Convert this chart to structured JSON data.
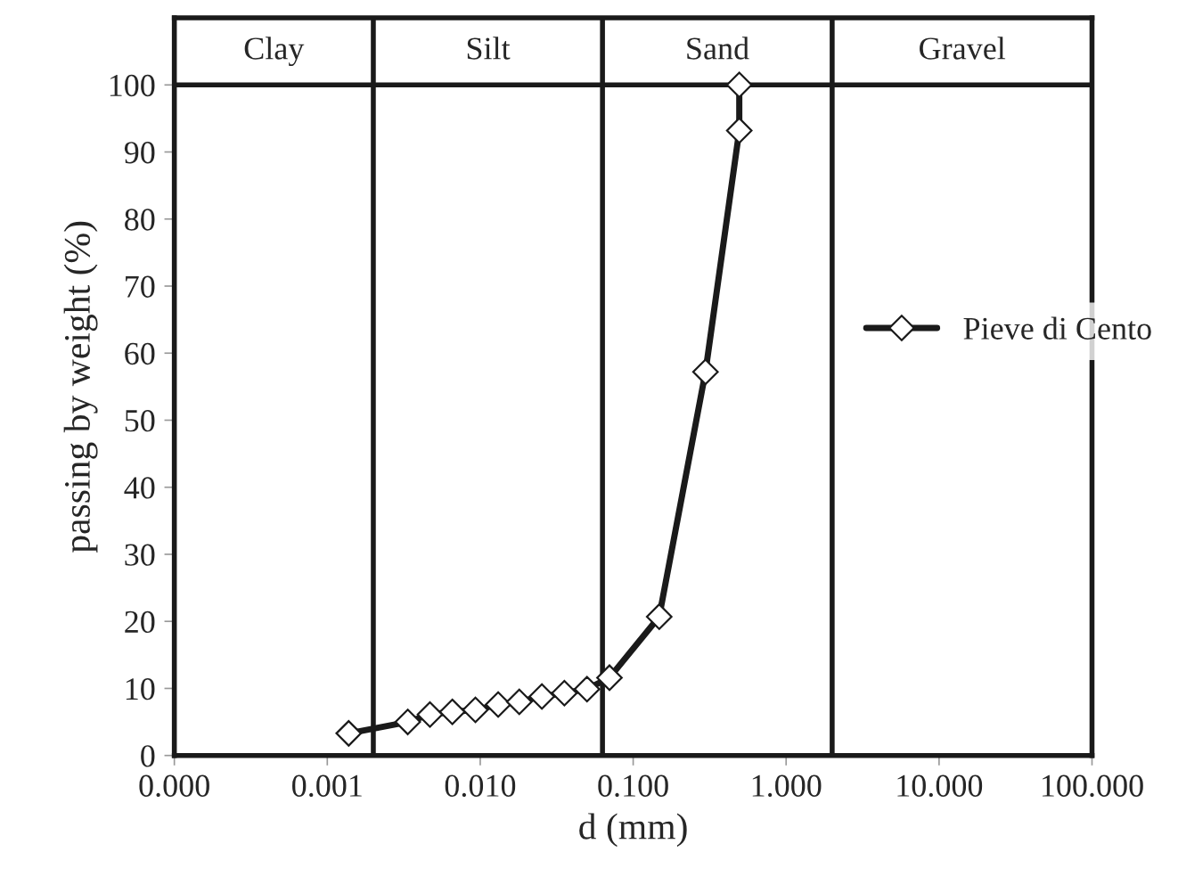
{
  "chart_data": {
    "type": "line",
    "xlabel": "d (mm)",
    "ylabel": "passing by weight (%)",
    "log": "x",
    "xlim": [
      0.0001,
      100
    ],
    "xticks": [
      {
        "value": 0.0001,
        "label": "0.000"
      },
      {
        "value": 0.001,
        "label": "0.001"
      },
      {
        "value": 0.01,
        "label": "0.010"
      },
      {
        "value": 0.1,
        "label": "0.100"
      },
      {
        "value": 1,
        "label": "1.000"
      },
      {
        "value": 10,
        "label": "10.000"
      },
      {
        "value": 100,
        "label": "100.000"
      }
    ],
    "ylim": [
      0,
      110
    ],
    "yticks": [
      0,
      10,
      20,
      30,
      40,
      50,
      60,
      70,
      80,
      90,
      100
    ],
    "grid": false,
    "legend": "right",
    "marker": "diamond",
    "line_style": "solid",
    "series": [
      {
        "name": "Pieve di Cento",
        "color": "#1a1a1a",
        "x": [
          0.00138,
          0.00336,
          0.00469,
          0.00657,
          0.0093,
          0.0131,
          0.018,
          0.0253,
          0.0355,
          0.0499,
          0.07,
          0.148,
          0.297,
          0.494,
          0.494
        ],
        "values": [
          3.3,
          5.0,
          6.1,
          6.5,
          6.8,
          7.6,
          8.0,
          8.8,
          9.3,
          9.9,
          11.6,
          20.7,
          57.2,
          93.2,
          100
        ]
      }
    ],
    "ref_lines": [
      {
        "axis": "y",
        "value": 100,
        "label": null,
        "color": "#1a1a1a"
      },
      {
        "axis": "x",
        "value": 0.002,
        "label": null,
        "color": "#1a1a1a"
      },
      {
        "axis": "x",
        "value": 0.063,
        "label": null,
        "color": "#1a1a1a"
      },
      {
        "axis": "x",
        "value": 2,
        "label": null,
        "color": "#1a1a1a"
      }
    ],
    "annotations": [
      "Clay",
      "Silt",
      "Sand",
      "Gravel"
    ]
  }
}
